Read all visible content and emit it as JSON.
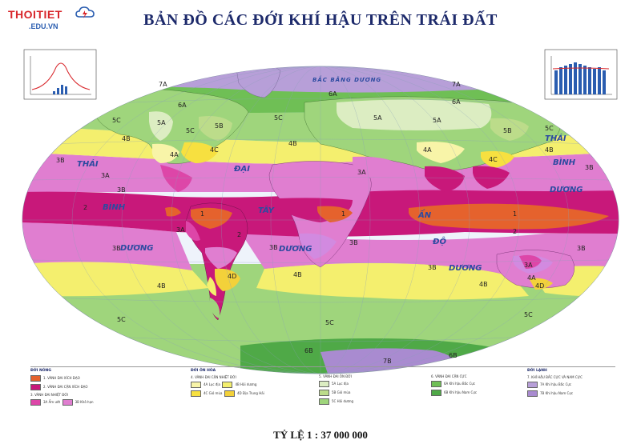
{
  "header": {
    "brand": "THOITIET",
    "brand_sub": ".EDU.VN",
    "title": "BẢN ĐỒ CÁC ĐỚI KHÍ HẬU TRÊN TRÁI ĐẤT"
  },
  "footer": {
    "scale": "TỶ LỆ 1 : 37 000 000"
  },
  "map": {
    "ocean_labels": {
      "arctic": "BẮC BĂNG DƯƠNG",
      "pacific_thai": "THÁI",
      "pacific_binh": "BÌNH",
      "pacific_duong": "DƯƠNG",
      "atlantic_dai": "ĐẠI",
      "atlantic_tay": "TÂY",
      "atlantic_duong": "DƯƠNG",
      "indian_an": "ẤN",
      "indian_do": "ĐỘ",
      "indian_duong": "DƯƠNG",
      "east_thai": "THÁI",
      "east_binh": "BÌNH",
      "east_duong": "DƯƠNG"
    },
    "zone_codes": [
      "1",
      "2",
      "3A",
      "3B",
      "4A",
      "4B",
      "4C",
      "4D",
      "5A",
      "5B",
      "5C",
      "6A",
      "6B",
      "7A",
      "7B"
    ],
    "colors": {
      "ocean": "#eef3fb",
      "zone_1": "#e5622d",
      "zone_2": "#c8187a",
      "zone_3A": "#dd46a8",
      "zone_3B": "#e07ed0",
      "zone_3B_land": "#d28ae0",
      "zone_4A": "#f8f4a8",
      "zone_4B": "#f4ef6e",
      "zone_4C": "#f7e040",
      "zone_4D": "#f3d13a",
      "zone_5A": "#dcedc2",
      "zone_5B": "#bcdc8a",
      "zone_5C": "#9fd57c",
      "zone_6A": "#6fbf55",
      "zone_6B": "#4fa947",
      "zone_7A": "#b79fd8",
      "zone_7B": "#a98bd0"
    }
  },
  "legend": {
    "col1_head": "ĐỚI NÓNG",
    "col1_items": [
      "1. VÀNH ĐAI XÍCH ĐẠO",
      "2. VÀNH ĐAI CẬN XÍCH ĐẠO",
      "3. VÀNH ĐAI NHIỆT ĐỚI"
    ],
    "col1_sub": [
      "3A",
      "Ẩm ướt",
      "3B",
      "Khô hạn"
    ],
    "col2_head": "ĐỚI ÔN HÒA",
    "col2_items": [
      "4. VÀNH ĐAI CẬN NHIỆT ĐỚI"
    ],
    "col2_sub": [
      "4A",
      "Lục địa",
      "4B",
      "Hải dương",
      "4C",
      "Gió mùa",
      "4D",
      "Địa Trung Hải"
    ],
    "col3_items": [
      "5. VÀNH ĐAI ÔN ĐỚI"
    ],
    "col3_sub": [
      "5A",
      "Lục địa",
      "5B",
      "Gió mùa",
      "5C",
      "Hải dương"
    ],
    "col4_items": [
      "6. VÀNH ĐAI CẬN CỰC"
    ],
    "col4_sub": [
      "6A",
      "Khí hậu Bắc Cực",
      "6B",
      "Khí hậu Nam Cực"
    ],
    "col5_head": "ĐỚI LẠNH",
    "col5_items": [
      "7. KHÍ HẬU BẮC CỰC VÀ NAM CỰC"
    ],
    "col5_sub": [
      "7A",
      "Khí hậu Bắc Cực",
      "7B",
      "Khí hậu Nam Cực"
    ]
  }
}
